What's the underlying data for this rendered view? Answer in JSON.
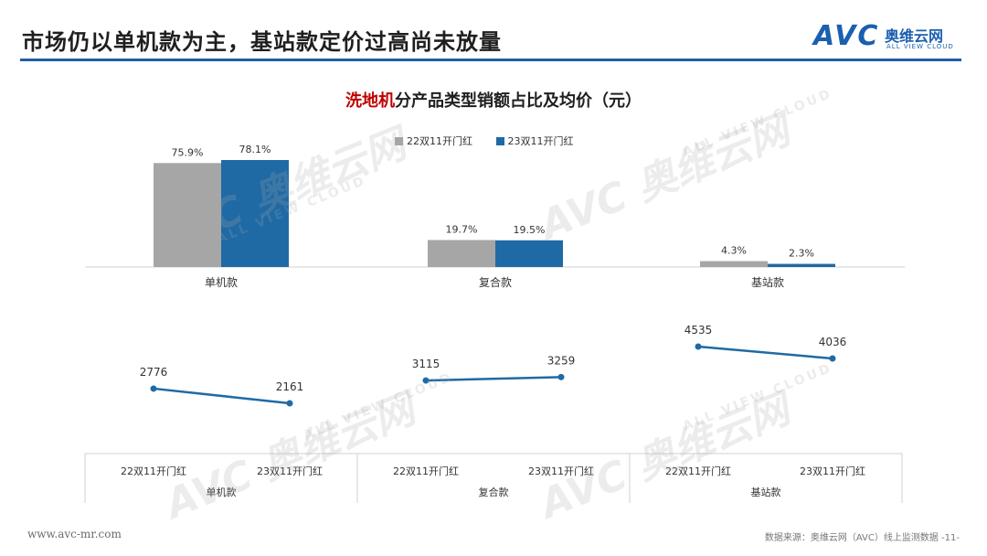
{
  "header": {
    "title": "市场仍以单机款为主，基站款定价过高尚未放量",
    "logo_text": "AVC",
    "logo_cn": "奥维云网",
    "logo_en": "ALL VIEW CLOUD",
    "accent_color": "#1f5ea8"
  },
  "chart_title": {
    "highlight": "洗地机",
    "rest": "分产品类型销额占比及均价（元）"
  },
  "legend": [
    {
      "name": "22双11开门红",
      "color": "#a6a6a6"
    },
    {
      "name": "23双11开门红",
      "color": "#1f6aa5"
    }
  ],
  "watermark": {
    "main": "AVC 奥维云网",
    "sub": "ALL VIEW CLOUD"
  },
  "footer": {
    "url": "www.avc-mr.com",
    "source": "数据来源：奥维云网（AVC）线上监测数据  -11-"
  },
  "chart_data": [
    {
      "type": "bar",
      "categories": [
        "单机款",
        "复合款",
        "基站款"
      ],
      "series": [
        {
          "name": "22双11开门红",
          "values": [
            75.9,
            19.7,
            4.3
          ],
          "labels": [
            "75.9%",
            "19.7%",
            "4.3%"
          ],
          "color": "#a6a6a6"
        },
        {
          "name": "23双11开门红",
          "values": [
            78.1,
            19.5,
            2.3
          ],
          "labels": [
            "78.1%",
            "19.5%",
            "2.3%"
          ],
          "color": "#1f6aa5"
        }
      ],
      "ylim": [
        0,
        80
      ]
    },
    {
      "type": "line",
      "groups": [
        {
          "category": "单机款",
          "x": [
            "22双11开门红",
            "23双11开门红"
          ],
          "values": [
            2776,
            2161
          ]
        },
        {
          "category": "复合款",
          "x": [
            "22双11开门红",
            "23双11开门红"
          ],
          "values": [
            3115,
            3259
          ]
        },
        {
          "category": "基站款",
          "x": [
            "22双11开门红",
            "23双11开门红"
          ],
          "values": [
            4535,
            4036
          ]
        }
      ],
      "ylim": [
        1500,
        4800
      ],
      "line_color": "#1f6aa5"
    }
  ]
}
